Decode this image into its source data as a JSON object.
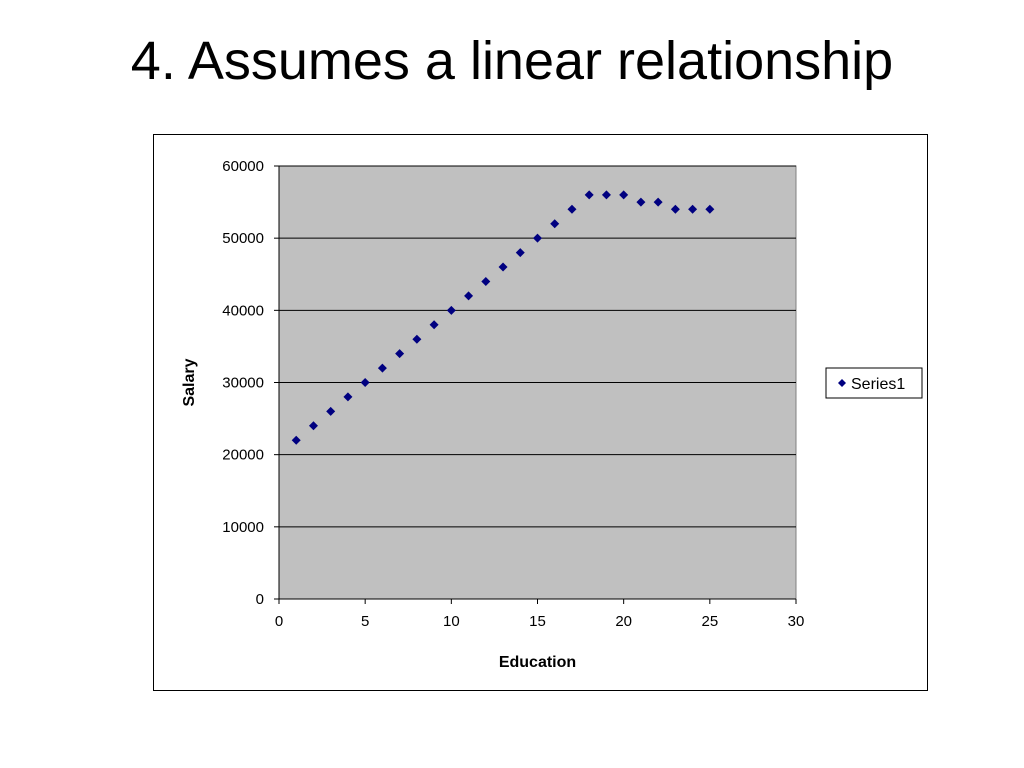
{
  "slide": {
    "title": "4. Assumes a linear relationship"
  },
  "chart_data": {
    "type": "scatter",
    "title": "",
    "xlabel": "Education",
    "ylabel": "Salary",
    "xlim": [
      0,
      30
    ],
    "ylim": [
      0,
      60000
    ],
    "x_ticks": [
      0,
      5,
      10,
      15,
      20,
      25,
      30
    ],
    "y_ticks": [
      0,
      10000,
      20000,
      30000,
      40000,
      50000,
      60000
    ],
    "grid": "horizontal",
    "plot_background": "#c0c0c0",
    "marker_color": "#000080",
    "marker": "diamond",
    "legend_position": "right",
    "series": [
      {
        "name": "Series1",
        "x": [
          1,
          2,
          3,
          4,
          5,
          6,
          7,
          8,
          9,
          10,
          11,
          12,
          13,
          14,
          15,
          16,
          17,
          18,
          19,
          20,
          21,
          22,
          23,
          24,
          25
        ],
        "y": [
          22000,
          24000,
          26000,
          28000,
          30000,
          32000,
          34000,
          36000,
          38000,
          40000,
          42000,
          44000,
          46000,
          48000,
          50000,
          52000,
          54000,
          56000,
          56000,
          56000,
          55000,
          55000,
          54000,
          54000,
          54000
        ]
      }
    ]
  }
}
